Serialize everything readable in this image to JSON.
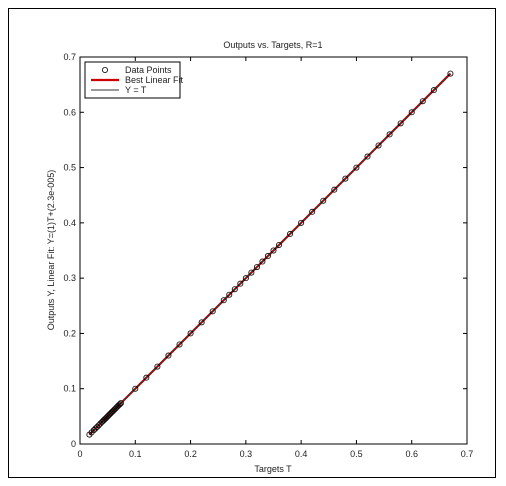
{
  "chart_data": {
    "type": "scatter",
    "title": "Outputs vs. Targets, R=1",
    "xlabel": "Targets T",
    "ylabel": "Outputs Y,  Linear Fit: Y=(1)T+(2.3e-005)",
    "xlim": [
      0,
      0.7
    ],
    "ylim": [
      0,
      0.7
    ],
    "x_ticks": [
      "0",
      "0.1",
      "0.2",
      "0.3",
      "0.4",
      "0.5",
      "0.6",
      "0.7"
    ],
    "y_ticks": [
      "0",
      "0.1",
      "0.2",
      "0.3",
      "0.4",
      "0.5",
      "0.6",
      "0.7"
    ],
    "grid": false,
    "legend_position": "top-left",
    "series": [
      {
        "name": "Data Points",
        "kind": "markers",
        "marker": "circle",
        "color": "#000000",
        "x": [
          0.017,
          0.021,
          0.025,
          0.028,
          0.031,
          0.034,
          0.037,
          0.04,
          0.042,
          0.044,
          0.046,
          0.048,
          0.05,
          0.052,
          0.054,
          0.056,
          0.058,
          0.06,
          0.062,
          0.064,
          0.066,
          0.068,
          0.07,
          0.072,
          0.074,
          0.1,
          0.12,
          0.14,
          0.16,
          0.18,
          0.2,
          0.22,
          0.24,
          0.26,
          0.27,
          0.28,
          0.29,
          0.3,
          0.31,
          0.32,
          0.33,
          0.34,
          0.35,
          0.36,
          0.38,
          0.4,
          0.42,
          0.44,
          0.46,
          0.48,
          0.5,
          0.52,
          0.54,
          0.56,
          0.58,
          0.6,
          0.62,
          0.64,
          0.67
        ],
        "y": [
          0.017,
          0.021,
          0.025,
          0.028,
          0.031,
          0.034,
          0.037,
          0.04,
          0.042,
          0.044,
          0.046,
          0.048,
          0.05,
          0.052,
          0.054,
          0.056,
          0.058,
          0.06,
          0.062,
          0.064,
          0.066,
          0.068,
          0.07,
          0.072,
          0.074,
          0.1,
          0.12,
          0.14,
          0.16,
          0.18,
          0.2,
          0.22,
          0.24,
          0.26,
          0.27,
          0.28,
          0.29,
          0.3,
          0.31,
          0.32,
          0.33,
          0.34,
          0.35,
          0.36,
          0.38,
          0.4,
          0.42,
          0.44,
          0.46,
          0.48,
          0.5,
          0.52,
          0.54,
          0.56,
          0.58,
          0.6,
          0.62,
          0.64,
          0.67
        ]
      },
      {
        "name": "Best Linear Fit",
        "kind": "line",
        "color": "#cc0000",
        "x": [
          0.017,
          0.67
        ],
        "y": [
          0.017,
          0.67
        ]
      },
      {
        "name": "Y = T",
        "kind": "line",
        "color": "#333333",
        "x": [
          0.017,
          0.67
        ],
        "y": [
          0.017,
          0.67
        ]
      }
    ]
  }
}
